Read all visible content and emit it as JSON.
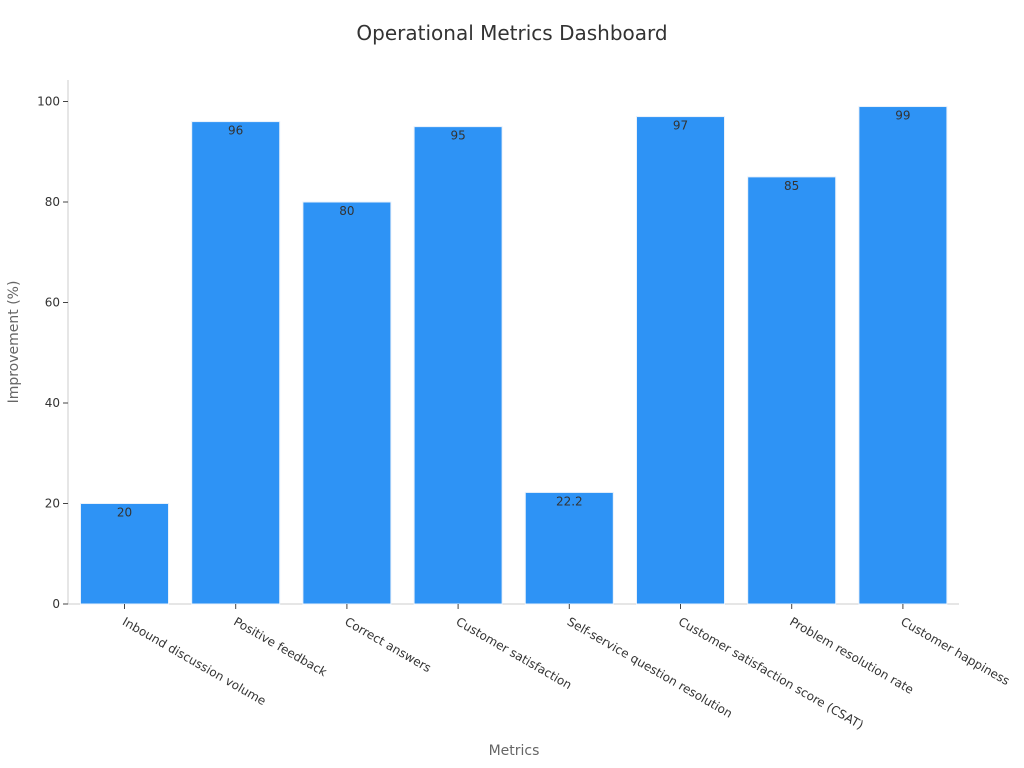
{
  "chart_data": {
    "type": "bar",
    "title": "Operational Metrics Dashboard",
    "xlabel": "Metrics",
    "ylabel": "Improvement (%)",
    "categories": [
      "Inbound discussion volume",
      "Positive feedback",
      "Correct answers",
      "Customer satisfaction",
      "Self-service question resolution",
      "Customer satisfaction score (CSAT)",
      "Problem resolution rate",
      "Customer happiness"
    ],
    "values": [
      20,
      96,
      80,
      95,
      22.2,
      97,
      85,
      99
    ],
    "data_labels": [
      "20",
      "96",
      "80",
      "95",
      "22.2",
      "97",
      "85",
      "99"
    ],
    "ylim": [
      0,
      104
    ],
    "yticks": [
      0,
      20,
      40,
      60,
      80,
      100
    ],
    "grid": false,
    "legend": "none",
    "colors": {
      "bar": "#2e93f5",
      "bar_edge": "#e8f1fb"
    }
  }
}
